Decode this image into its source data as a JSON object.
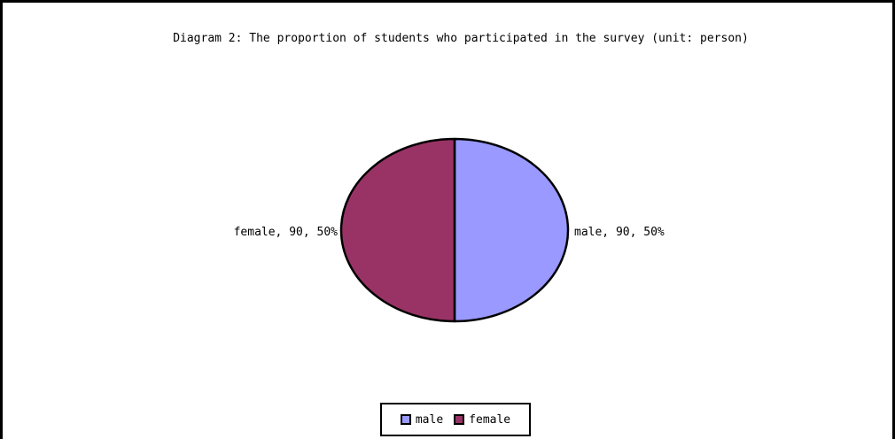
{
  "chart_data": {
    "type": "pie",
    "title": "Diagram 2: The proportion of students who participated in the survey (unit: person)",
    "slices": [
      {
        "label": "male",
        "value": 90,
        "percent": "50%",
        "color": "#9999ff"
      },
      {
        "label": "female",
        "value": 90,
        "percent": "50%",
        "color": "#993366"
      }
    ],
    "data_labels": [
      "male, 90, 50%",
      "female, 90, 50%"
    ],
    "legend": {
      "position": "bottom",
      "items": [
        {
          "label": "male",
          "color": "#9999ff"
        },
        {
          "label": "female",
          "color": "#993366"
        }
      ]
    }
  }
}
